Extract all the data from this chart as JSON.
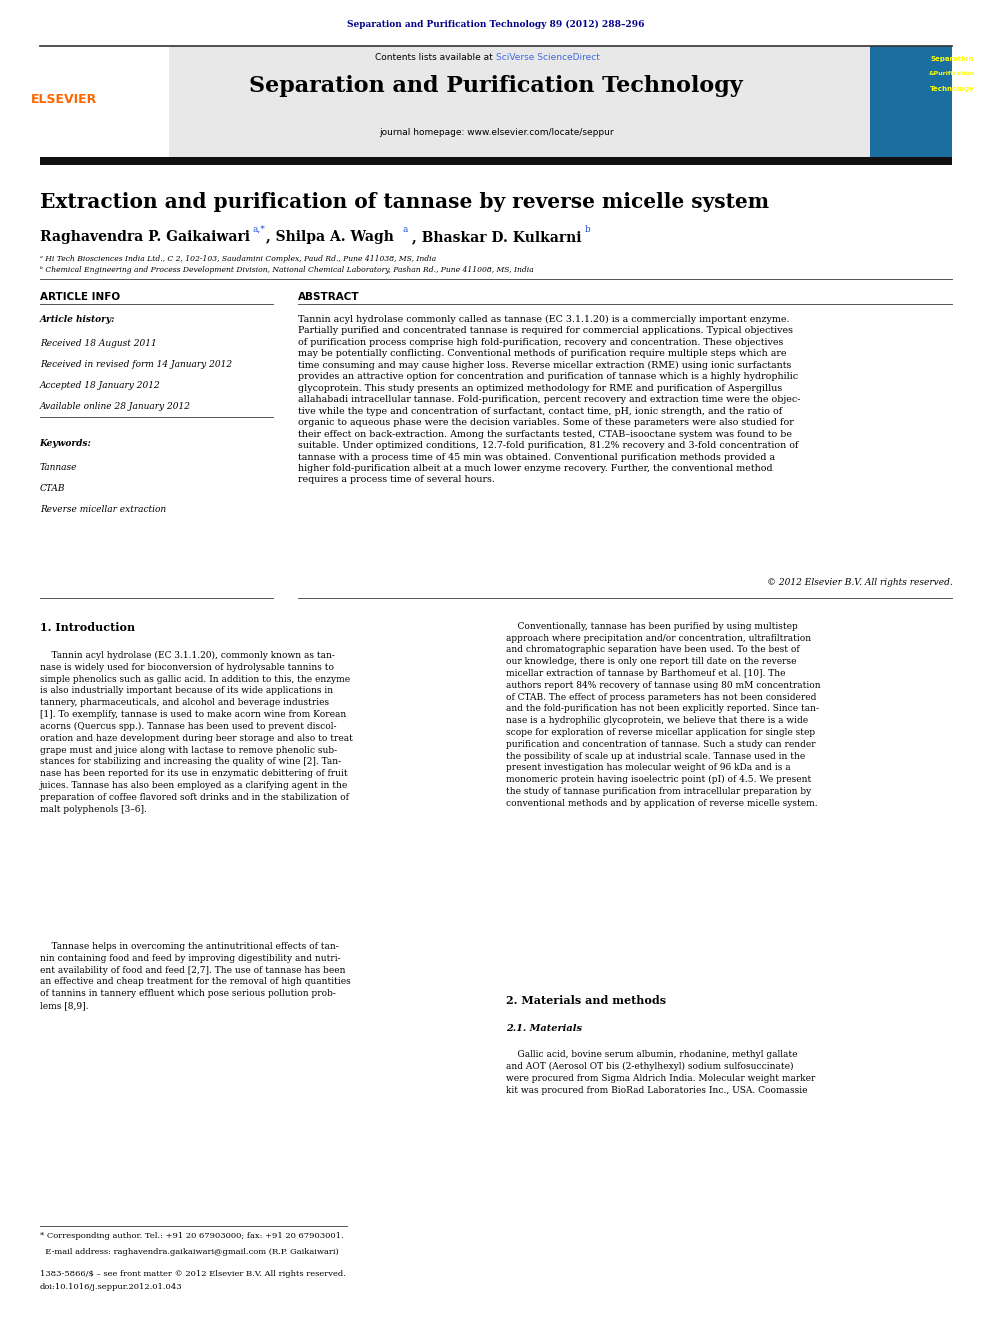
{
  "page_width": 9.92,
  "page_height": 13.23,
  "background_color": "#ffffff",
  "top_citation": "Separation and Purification Technology 89 (2012) 288–296",
  "top_citation_color": "#00008B",
  "header_bg": "#e8e8e8",
  "header_title": "Separation and Purification Technology",
  "journal_homepage": "journal homepage: www.elsevier.com/locate/seppur",
  "contents_text": "Contents lists available at ",
  "sciverse_text": "SciVerse ScienceDirect",
  "sciverse_color": "#4169E1",
  "paper_title": "Extraction and purification of tannase by reverse micelle system",
  "affil_a": "ᵃ Hi Tech Biosciences India Ltd., C 2, 102-103, Saudamini Complex, Paud Rd., Pune 411038, MS, India",
  "affil_b": "ᵇ Chemical Engineering and Process Development Division, National Chemical Laboratory, Pashan Rd., Pune 411008, MS, India",
  "article_info_header": "ARTICLE INFO",
  "abstract_header": "ABSTRACT",
  "article_history_label": "Article history:",
  "received": "Received 18 August 2011",
  "received_revised": "Received in revised form 14 January 2012",
  "accepted": "Accepted 18 January 2012",
  "available": "Available online 28 January 2012",
  "keywords_label": "Keywords:",
  "keywords": [
    "Tannase",
    "CTAB",
    "Reverse micellar extraction"
  ],
  "abstract_text": "Tannin acyl hydrolase commonly called as tannase (EC 3.1.1.20) is a commercially important enzyme. Partially purified and concentrated tannase is required for commercial applications. Typical objectives of purification process comprise high fold-purification, recovery and concentration. These objectives may be potentially conflicting. Conventional methods of purification require multiple steps which are time consuming and may cause higher loss. Reverse micellar extraction (RME) using ionic surfactants provides an attractive option for concentration and purification of tannase which is a highly hydrophilic glycoprotein. This study presents an optimized methodology for RME and purification of Aspergillus allahabadi intracellular tannase. Fold-purification, percent recovery and extraction time were the objective while the type and concentration of surfactant, contact time, pH, ionic strength, and the ratio of organic to aqueous phase were the decision variables. Some of these parameters were also studied for their effect on back-extraction. Among the surfactants tested, CTAB–isooctane system was found to be suitable. Under optimized conditions, 12.7-fold purification, 81.2% recovery and 3-fold concentration of tannase with a process time of 45 min was obtained. Conventional purification methods provided a higher fold-purification albeit at a much lower enzyme recovery. Further, the conventional method requires a process time of several hours.",
  "copyright": "© 2012 Elsevier B.V. All rights reserved.",
  "section1_header": "1. Introduction",
  "section2_header": "2. Materials and methods",
  "section21_header": "2.1. Materials",
  "elsevier_color": "#FF6600"
}
